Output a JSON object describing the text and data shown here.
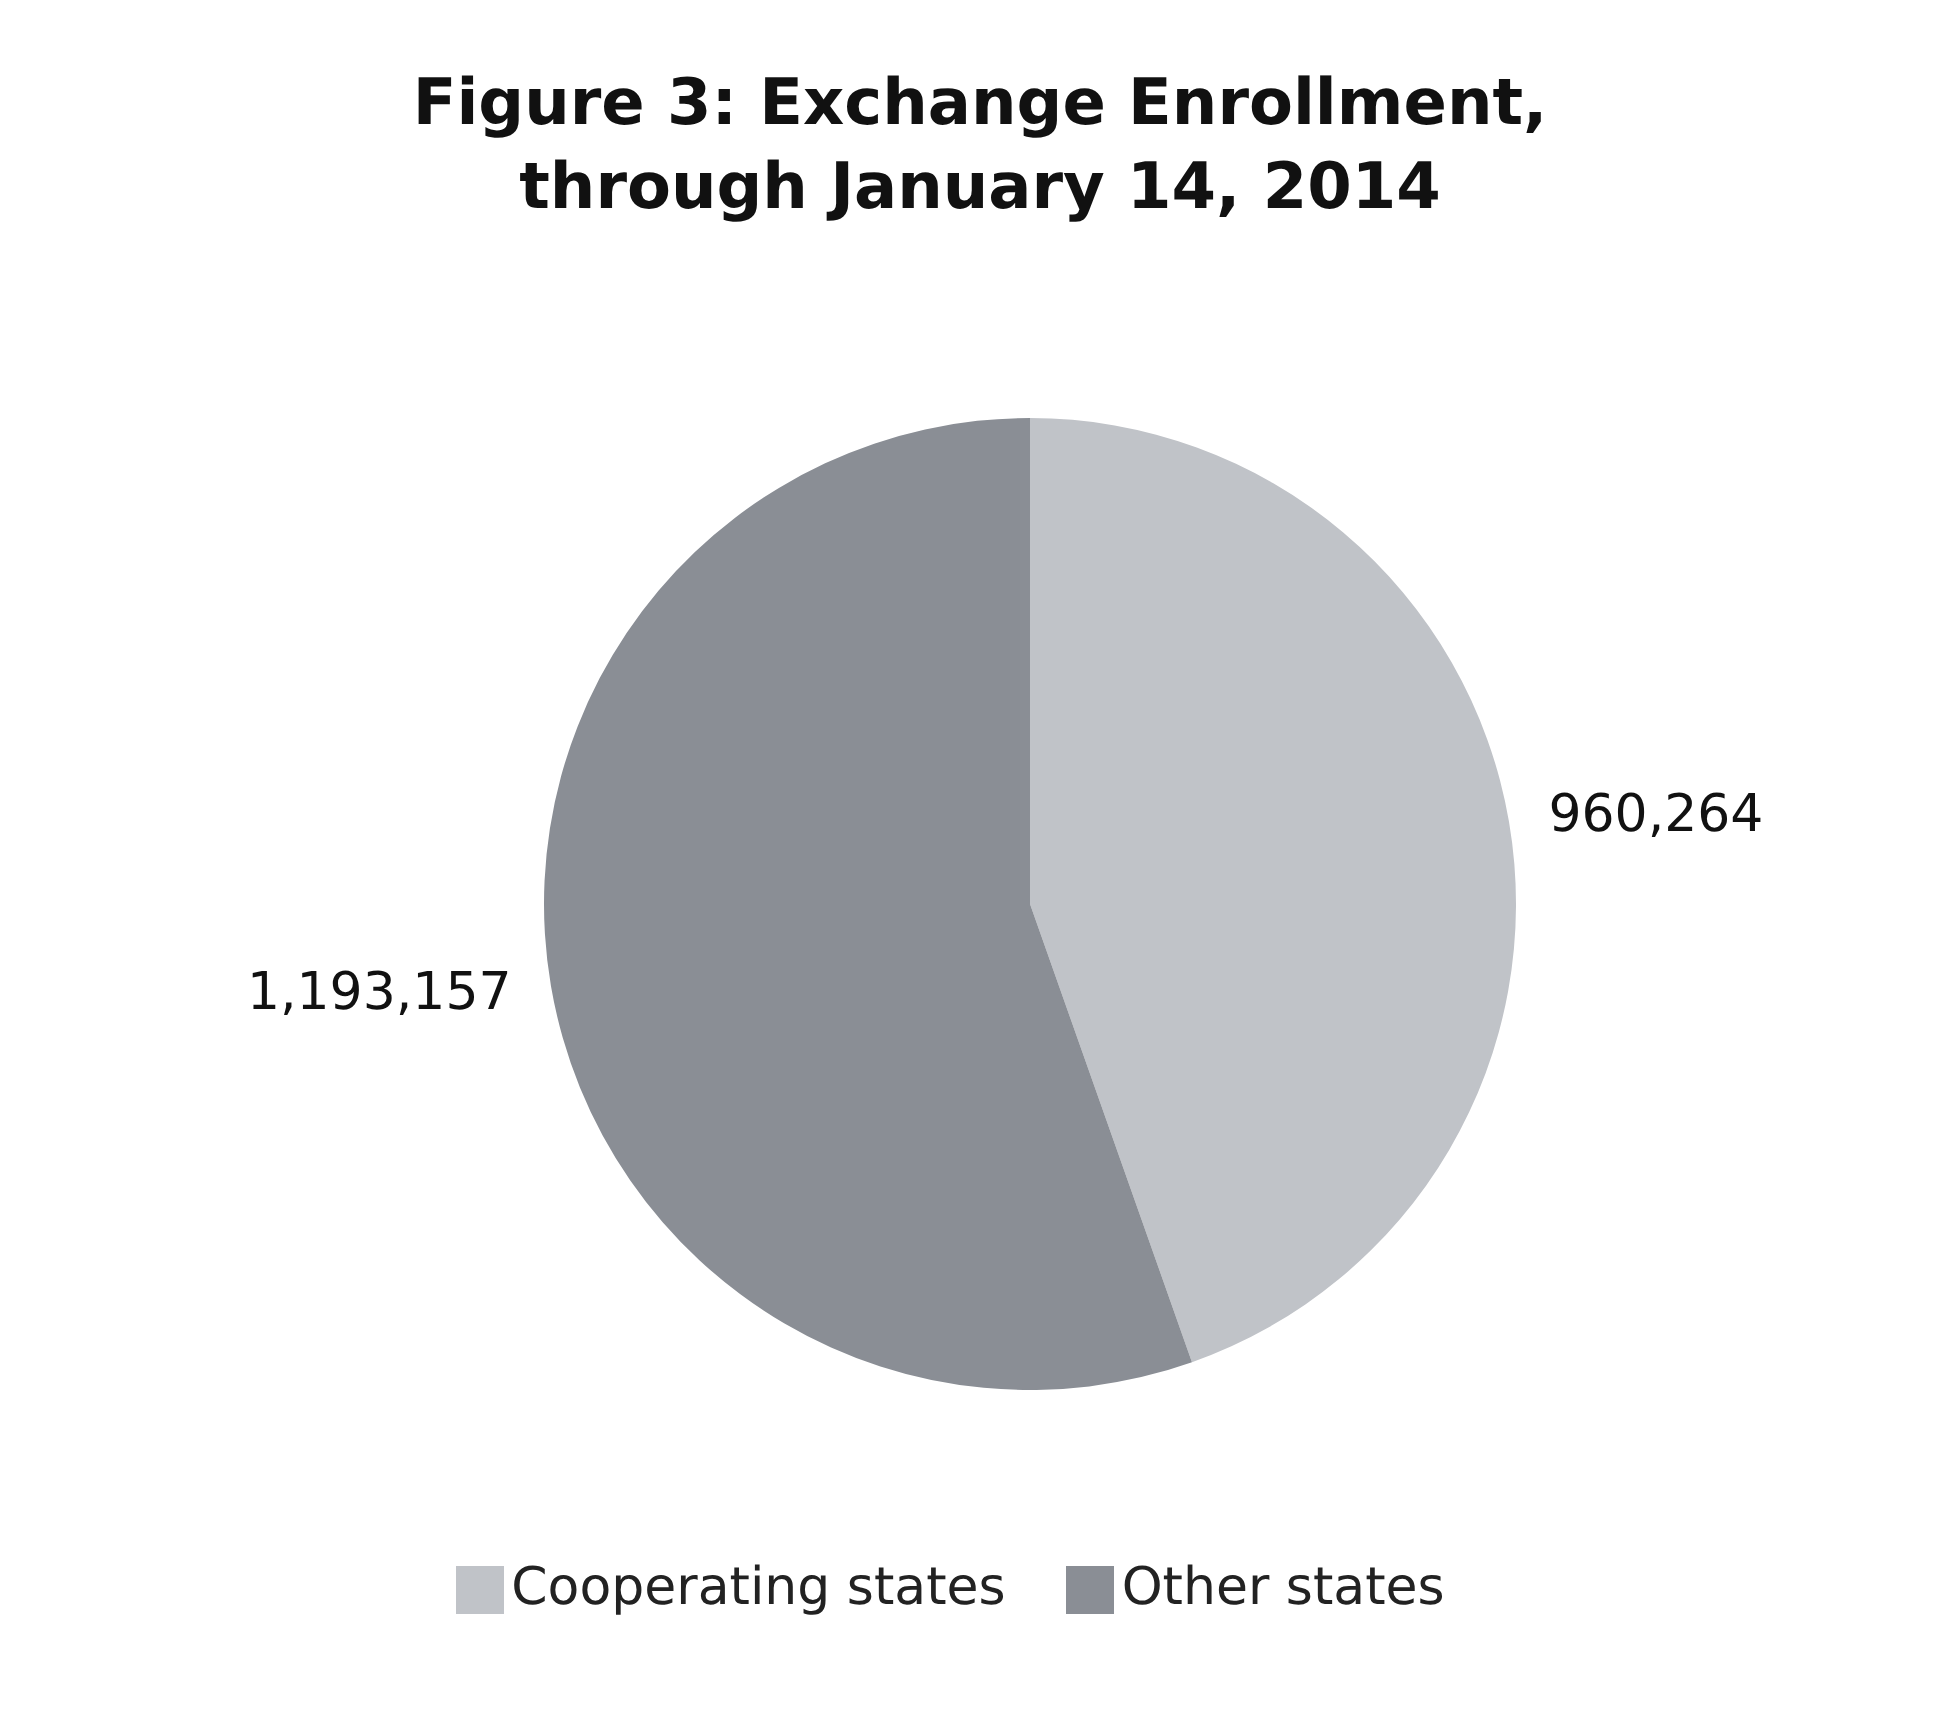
{
  "chart_data": {
    "type": "pie",
    "title": "Figure 3: Exchange Enrollment, through January 14, 2014",
    "categories": [
      "Cooperating states",
      "Other states"
    ],
    "values": [
      960264,
      1193157
    ],
    "value_labels": [
      "960,264",
      "1,193,157"
    ],
    "colors": [
      "#c0c3c8",
      "#8a8e95"
    ],
    "legend": "bottom"
  }
}
